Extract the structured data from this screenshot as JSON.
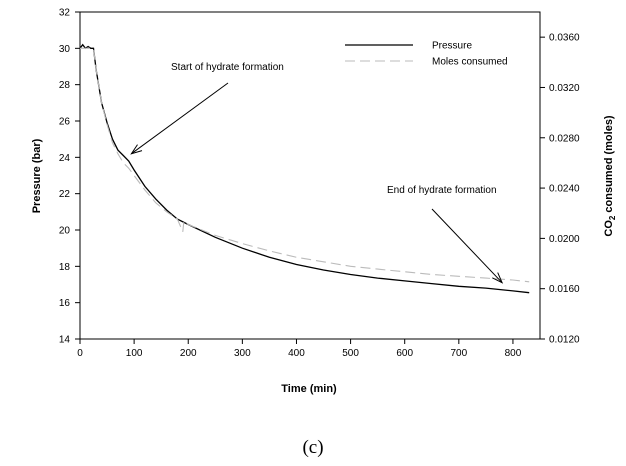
{
  "chart_data": {
    "type": "line",
    "xlabel": "Time (min)",
    "ylabel_left": "Pressure (bar)",
    "ylabel_right_pre": "CO",
    "ylabel_right_sub": "2",
    "ylabel_right_post": " consumed (moles)",
    "xlim": [
      0,
      850
    ],
    "ylim_left": [
      14,
      32
    ],
    "ylim_right": [
      0.012,
      0.038
    ],
    "x_ticks": [
      "0",
      "100",
      "200",
      "300",
      "400",
      "500",
      "600",
      "700",
      "800"
    ],
    "y_ticks_left": [
      "14",
      "16",
      "18",
      "20",
      "22",
      "24",
      "26",
      "28",
      "30",
      "32"
    ],
    "y_ticks_right": [
      "0.0120",
      "0.0160",
      "0.0200",
      "0.0240",
      "0.0280",
      "0.0320",
      "0.0360"
    ],
    "legend_position": "top-right",
    "series": [
      {
        "name": "Pressure",
        "axis": "left",
        "color": "#000000",
        "style": "solid",
        "points": [
          [
            0,
            30.0
          ],
          [
            5,
            30.2
          ],
          [
            10,
            30.0
          ],
          [
            15,
            30.1
          ],
          [
            20,
            30.0
          ],
          [
            25,
            30.0
          ],
          [
            30,
            28.8
          ],
          [
            40,
            27.0
          ],
          [
            50,
            25.9
          ],
          [
            60,
            25.0
          ],
          [
            70,
            24.4
          ],
          [
            80,
            24.1
          ],
          [
            90,
            23.8
          ],
          [
            100,
            23.3
          ],
          [
            120,
            22.4
          ],
          [
            140,
            21.7
          ],
          [
            160,
            21.1
          ],
          [
            180,
            20.6
          ],
          [
            200,
            20.3
          ],
          [
            250,
            19.6
          ],
          [
            300,
            19.0
          ],
          [
            350,
            18.5
          ],
          [
            400,
            18.1
          ],
          [
            450,
            17.8
          ],
          [
            500,
            17.55
          ],
          [
            550,
            17.35
          ],
          [
            600,
            17.2
          ],
          [
            650,
            17.05
          ],
          [
            700,
            16.9
          ],
          [
            750,
            16.8
          ],
          [
            800,
            16.65
          ],
          [
            830,
            16.55
          ]
        ]
      },
      {
        "name": "Moles consumed",
        "axis": "left",
        "color": "#bbbbbb",
        "style": "dashed",
        "points": [
          [
            0,
            30.0
          ],
          [
            25,
            30.0
          ],
          [
            30,
            28.8
          ],
          [
            40,
            27.0
          ],
          [
            50,
            25.8
          ],
          [
            60,
            24.8
          ],
          [
            70,
            24.2
          ],
          [
            80,
            23.7
          ],
          [
            90,
            23.4
          ],
          [
            100,
            23.0
          ],
          [
            120,
            22.2
          ],
          [
            140,
            21.5
          ],
          [
            160,
            21.0
          ],
          [
            180,
            20.6
          ],
          [
            190,
            19.9
          ],
          [
            192,
            20.5
          ],
          [
            200,
            20.3
          ],
          [
            250,
            19.7
          ],
          [
            300,
            19.25
          ],
          [
            350,
            18.85
          ],
          [
            400,
            18.5
          ],
          [
            450,
            18.25
          ],
          [
            500,
            18.0
          ],
          [
            550,
            17.85
          ],
          [
            600,
            17.7
          ],
          [
            650,
            17.55
          ],
          [
            700,
            17.45
          ],
          [
            750,
            17.35
          ],
          [
            800,
            17.25
          ],
          [
            830,
            17.15
          ]
        ]
      }
    ],
    "annotations": [
      {
        "text": "Start of hydrate formation",
        "target": [
          95,
          24.2
        ]
      },
      {
        "text": "End of hydrate formation",
        "target": [
          780,
          17.1
        ]
      }
    ]
  },
  "caption": "(c)"
}
